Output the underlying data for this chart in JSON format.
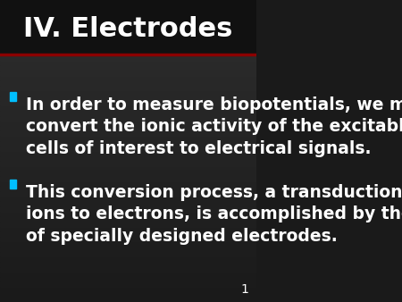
{
  "title": "IV. Electrodes",
  "title_color": "#FFFFFF",
  "title_fontsize": 22,
  "title_bold": true,
  "background_color_top": "#1a1a1a",
  "background_color_bottom": "#2d2d2d",
  "header_line_color": "#8B0000",
  "bullet_color": "#00BFFF",
  "bullet_text_color": "#FFFFFF",
  "bullet_fontsize": 13.5,
  "slide_number": "1",
  "slide_number_color": "#FFFFFF",
  "slide_number_fontsize": 10,
  "bullets": [
    "In order to measure biopotentials, we must\nconvert the ionic activity of the excitable\ncells of interest to electrical signals.",
    "This conversion process, a transduction of\nions to electrons, is accomplished by the use\nof specially designed electrodes."
  ]
}
